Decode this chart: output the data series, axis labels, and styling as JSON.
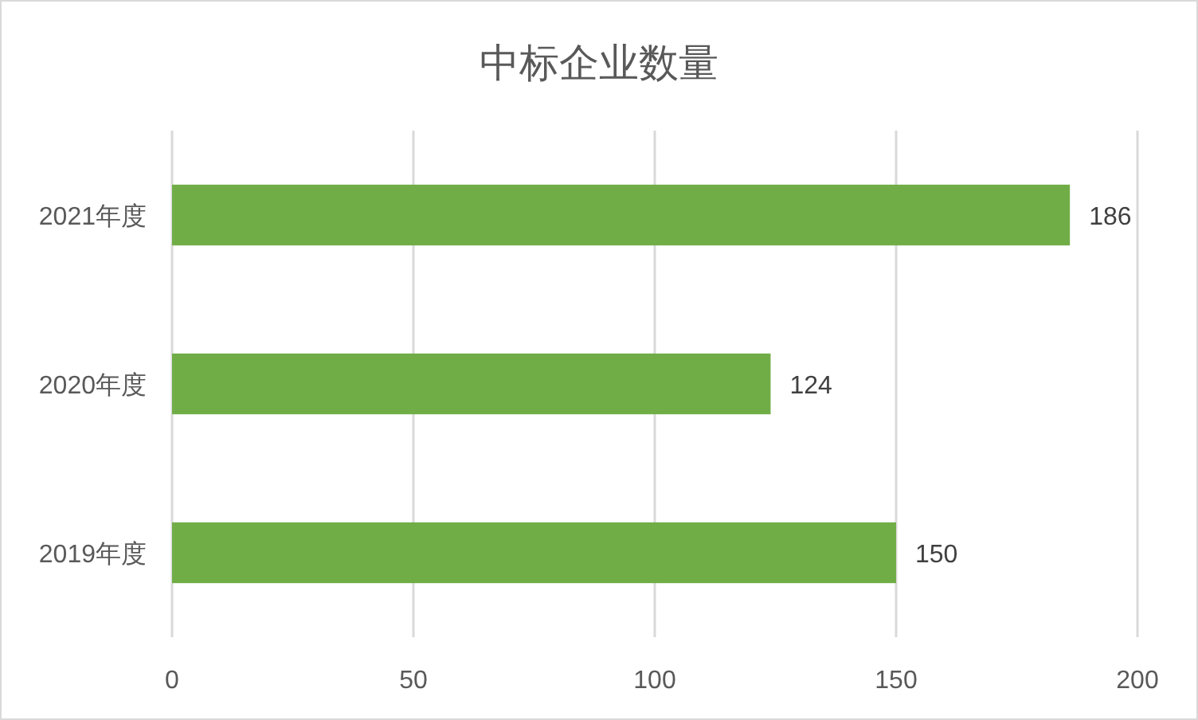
{
  "chart_data": {
    "type": "bar",
    "orientation": "horizontal",
    "title": "中标企业数量",
    "categories": [
      "2021年度",
      "2020年度",
      "2019年度"
    ],
    "values": [
      186,
      124,
      150
    ],
    "color": "#70ad47",
    "xlim": [
      0,
      200
    ],
    "xticks": [
      0,
      50,
      100,
      150,
      200
    ],
    "grid": "x",
    "data_labels": true
  }
}
